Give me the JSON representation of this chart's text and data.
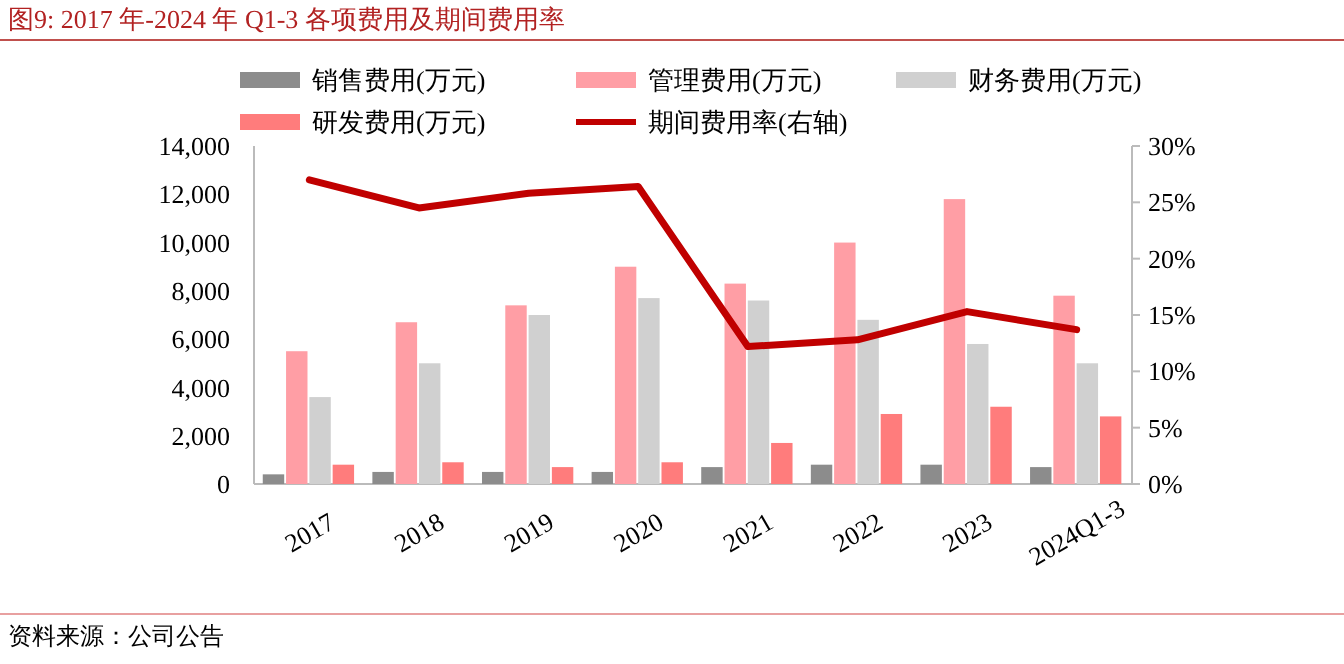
{
  "chart_data": {
    "type": "bar",
    "title": "图9:  2017 年-2024 年 Q1-3 各项费用及期间费用率",
    "categories": [
      "2017",
      "2018",
      "2019",
      "2020",
      "2021",
      "2022",
      "2023",
      "2024Q1-3"
    ],
    "series": [
      {
        "name": "销售费用(万元)",
        "color": "#8c8c8c",
        "values": [
          400,
          500,
          500,
          500,
          700,
          800,
          800,
          700
        ]
      },
      {
        "name": "管理费用(万元)",
        "color": "#ff9ea5",
        "values": [
          5500,
          6700,
          7400,
          9000,
          8300,
          10000,
          11800,
          7800
        ]
      },
      {
        "name": "财务费用(万元)",
        "color": "#d0d0d0",
        "values": [
          3600,
          5000,
          7000,
          7700,
          7600,
          6800,
          5800,
          5000
        ]
      },
      {
        "name": "研发费用(万元)",
        "color": "#ff7c7c",
        "values": [
          800,
          900,
          700,
          900,
          1700,
          2900,
          3200,
          2800
        ]
      },
      {
        "name": "期间费用率(右轴)",
        "color": "#c00000",
        "type": "line",
        "axis": "y2",
        "values": [
          27.0,
          24.5,
          25.8,
          26.4,
          12.2,
          12.8,
          15.3,
          13.7
        ]
      }
    ],
    "ylim": [
      0,
      14000
    ],
    "yticks": [
      {
        "value": 0,
        "label": "0"
      },
      {
        "value": 2000,
        "label": "2,000"
      },
      {
        "value": 4000,
        "label": "4,000"
      },
      {
        "value": 6000,
        "label": "6,000"
      },
      {
        "value": 8000,
        "label": "8,000"
      },
      {
        "value": 10000,
        "label": "10,000"
      },
      {
        "value": 12000,
        "label": "12,000"
      },
      {
        "value": 14000,
        "label": "14,000"
      }
    ],
    "y2lim": [
      0,
      30
    ],
    "y2ticks": [
      {
        "value": 0,
        "label": "0%"
      },
      {
        "value": 5,
        "label": "5%"
      },
      {
        "value": 10,
        "label": "10%"
      },
      {
        "value": 15,
        "label": "15%"
      },
      {
        "value": 20,
        "label": "20%"
      },
      {
        "value": 25,
        "label": "25%"
      },
      {
        "value": 30,
        "label": "30%"
      }
    ],
    "legend": "top",
    "grid": false,
    "annotations": [
      "资料来源：公司公告"
    ]
  }
}
